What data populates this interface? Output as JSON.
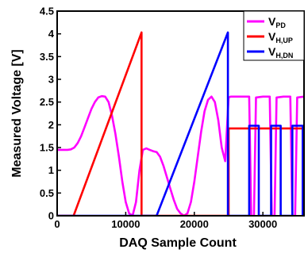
{
  "chart_data": {
    "type": "line",
    "xlabel": "DAQ Sample Count",
    "ylabel": "Measured Voltage [V]",
    "xlim": [
      0,
      36000
    ],
    "ylim": [
      0,
      4.5
    ],
    "xticks": [
      0,
      10000,
      20000,
      30000
    ],
    "yticks": [
      0,
      0.5,
      1,
      1.5,
      2,
      2.5,
      3,
      3.5,
      4,
      4.5
    ],
    "xtick_labels": [
      "0",
      "10000",
      "20000",
      "30000"
    ],
    "ytick_labels": [
      "0",
      "0.5",
      "1",
      "1.5",
      "2",
      "2.5",
      "3",
      "3.5",
      "4",
      "4.5"
    ],
    "legend_position": "top-right",
    "series": [
      {
        "name": "V",
        "name_sub": "PD",
        "color": "#ff00ff",
        "x": [
          0,
          500,
          1000,
          1500,
          2000,
          2500,
          3000,
          3500,
          4000,
          4500,
          5000,
          5500,
          6000,
          6500,
          7000,
          7500,
          8000,
          8500,
          9000,
          9500,
          10000,
          10500,
          11000,
          11500,
          12000,
          12500,
          13000,
          13500,
          14000,
          14500,
          15000,
          15500,
          16000,
          16500,
          17000,
          17500,
          18000,
          18500,
          19000,
          19500,
          20000,
          20500,
          21000,
          21500,
          22000,
          22500,
          23000,
          23500,
          24000,
          24500,
          25000,
          25300,
          25600,
          26000,
          27000,
          28000,
          28300,
          28700,
          29000,
          30000,
          31000,
          31300,
          31700,
          32000,
          33000,
          34000,
          34300,
          34700,
          35000,
          36000
        ],
        "y": [
          1.45,
          1.45,
          1.45,
          1.45,
          1.46,
          1.5,
          1.6,
          1.75,
          1.95,
          2.15,
          2.35,
          2.5,
          2.6,
          2.63,
          2.62,
          2.5,
          2.2,
          1.8,
          1.3,
          0.75,
          0.3,
          0.05,
          0.0,
          0.3,
          1.0,
          1.45,
          1.48,
          1.45,
          1.42,
          1.4,
          1.3,
          1.1,
          0.85,
          0.6,
          0.35,
          0.15,
          0.05,
          0.0,
          0.05,
          0.3,
          0.75,
          1.3,
          1.85,
          2.3,
          2.55,
          2.62,
          2.5,
          2.1,
          1.5,
          1.2,
          2.6,
          2.62,
          2.62,
          2.62,
          2.62,
          2.62,
          0.0,
          0.0,
          2.6,
          2.62,
          2.62,
          0.0,
          0.0,
          2.6,
          2.62,
          2.62,
          0.0,
          0.0,
          2.6,
          2.62
        ]
      },
      {
        "name": "V",
        "name_sub": "H,UP",
        "color": "#ff0000",
        "x": [
          0,
          2400,
          12300,
          12300,
          25000,
          25000,
          36000
        ],
        "y": [
          0,
          0,
          4.03,
          0,
          0,
          1.92,
          1.92
        ]
      },
      {
        "name": "V",
        "name_sub": "H,DN",
        "color": "#0000ff",
        "x": [
          0,
          14500,
          24900,
          24900,
          28000,
          28000,
          29400,
          29400,
          31200,
          31200,
          32600,
          32600,
          34300,
          34300,
          35800,
          35800,
          36000
        ],
        "y": [
          0,
          0,
          4.03,
          0,
          0,
          1.98,
          1.98,
          0,
          0,
          1.98,
          1.98,
          0,
          0,
          1.98,
          1.98,
          0,
          0
        ]
      }
    ]
  }
}
